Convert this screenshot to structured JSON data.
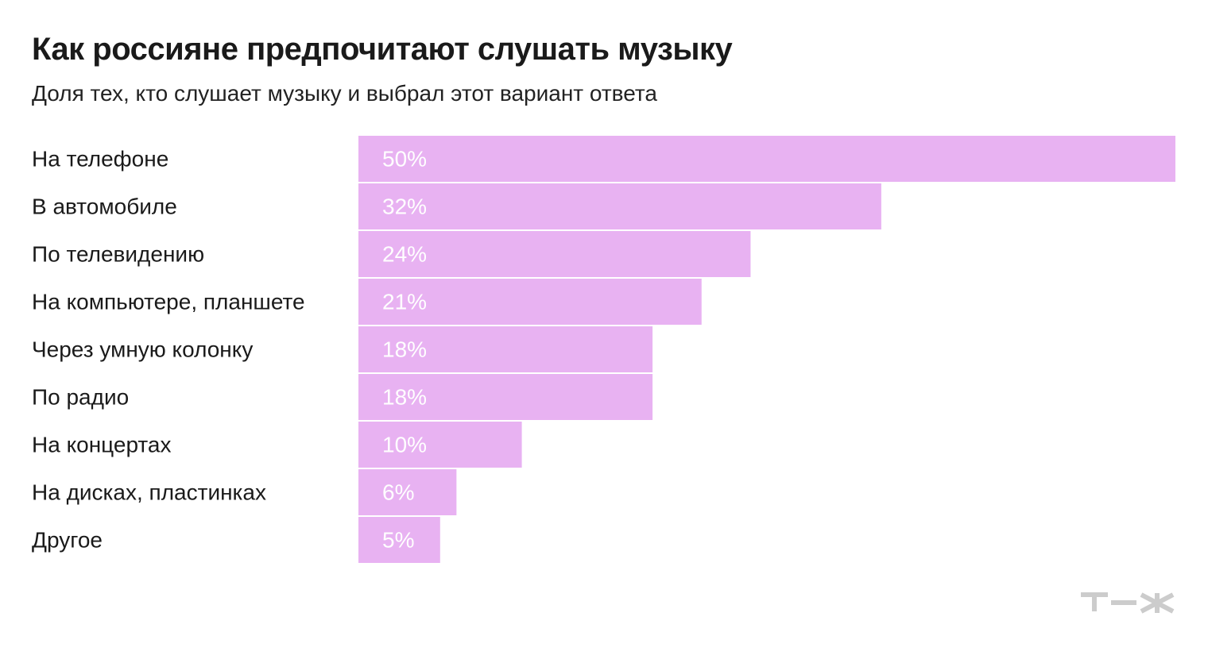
{
  "header": {
    "title": "Как россияне предпочитают слушать музыку",
    "subtitle": "Доля тех, кто слушает музыку и выбрал этот вариант ответа"
  },
  "colors": {
    "bar": "#e8b2f2",
    "value_text": "#ffffff",
    "logo": "#cccccc"
  },
  "logo": {
    "text": "т—ж"
  },
  "chart_data": {
    "type": "bar",
    "orientation": "horizontal",
    "title": "Как россияне предпочитают слушать музыку",
    "subtitle": "Доля тех, кто слушает музыку и выбрал этот вариант ответа",
    "categories": [
      "На телефоне",
      "В автомобиле",
      "По телевидению",
      "На компьютере, планшете",
      "Через умную колонку",
      "По радио",
      "На концертах",
      "На дисках, пластинках",
      "Другое"
    ],
    "values": [
      50,
      32,
      24,
      21,
      18,
      18,
      10,
      6,
      5
    ],
    "value_labels": [
      "50%",
      "32%",
      "24%",
      "21%",
      "18%",
      "18%",
      "10%",
      "6%",
      "5%"
    ],
    "unit": "%",
    "xlim": [
      0,
      50
    ],
    "grid": false,
    "legend": "none"
  }
}
